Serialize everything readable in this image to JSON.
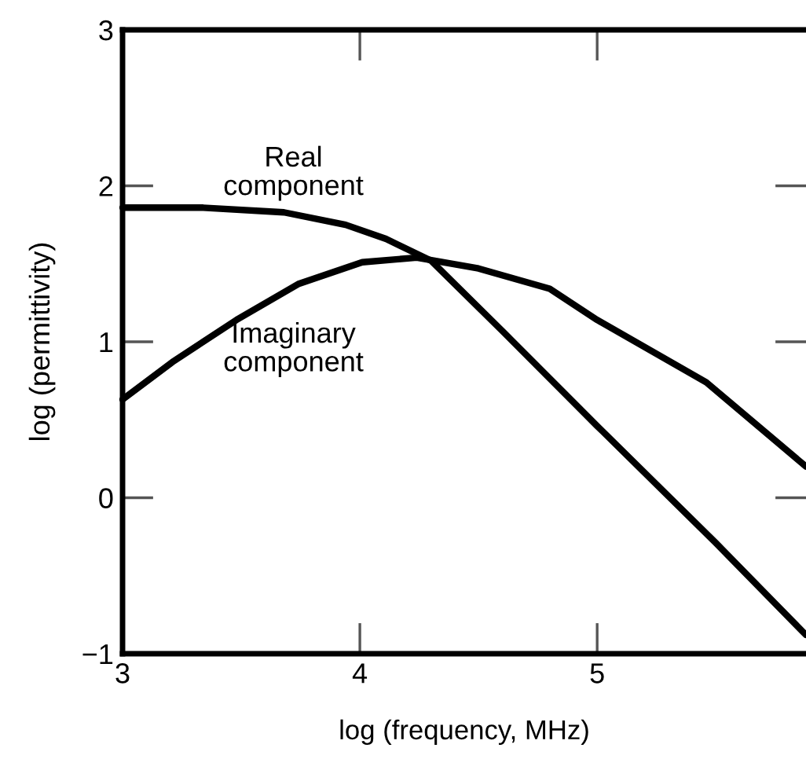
{
  "chart_data": {
    "type": "line",
    "xlabel": "log (frequency, MHz)",
    "ylabel": "log (permittivity)",
    "xlim": [
      3,
      5.88
    ],
    "ylim": [
      -1,
      3
    ],
    "xticks": [
      3,
      4,
      5
    ],
    "yticks": [
      {
        "value": -1,
        "label": "−1"
      },
      0,
      1,
      2,
      3
    ],
    "grid": false,
    "legend": false,
    "series": [
      {
        "name": "Real\ncomponent",
        "color": "#000000",
        "x": [
          3,
          3.34,
          3.68,
          3.94,
          4.11,
          4.3,
          4.6,
          5.0,
          5.5,
          5.88
        ],
        "values": [
          1.86,
          1.86,
          1.83,
          1.75,
          1.66,
          1.52,
          1.07,
          0.46,
          -0.29,
          -0.88
        ]
      },
      {
        "name": "Imaginary\ncomponent",
        "color": "#000000",
        "x": [
          3,
          3.21,
          3.48,
          3.74,
          4.01,
          4.24,
          4.5,
          4.8,
          5.0,
          5.46,
          5.88
        ],
        "values": [
          0.63,
          0.87,
          1.14,
          1.37,
          1.51,
          1.54,
          1.47,
          1.34,
          1.14,
          0.74,
          0.2
        ]
      }
    ]
  }
}
